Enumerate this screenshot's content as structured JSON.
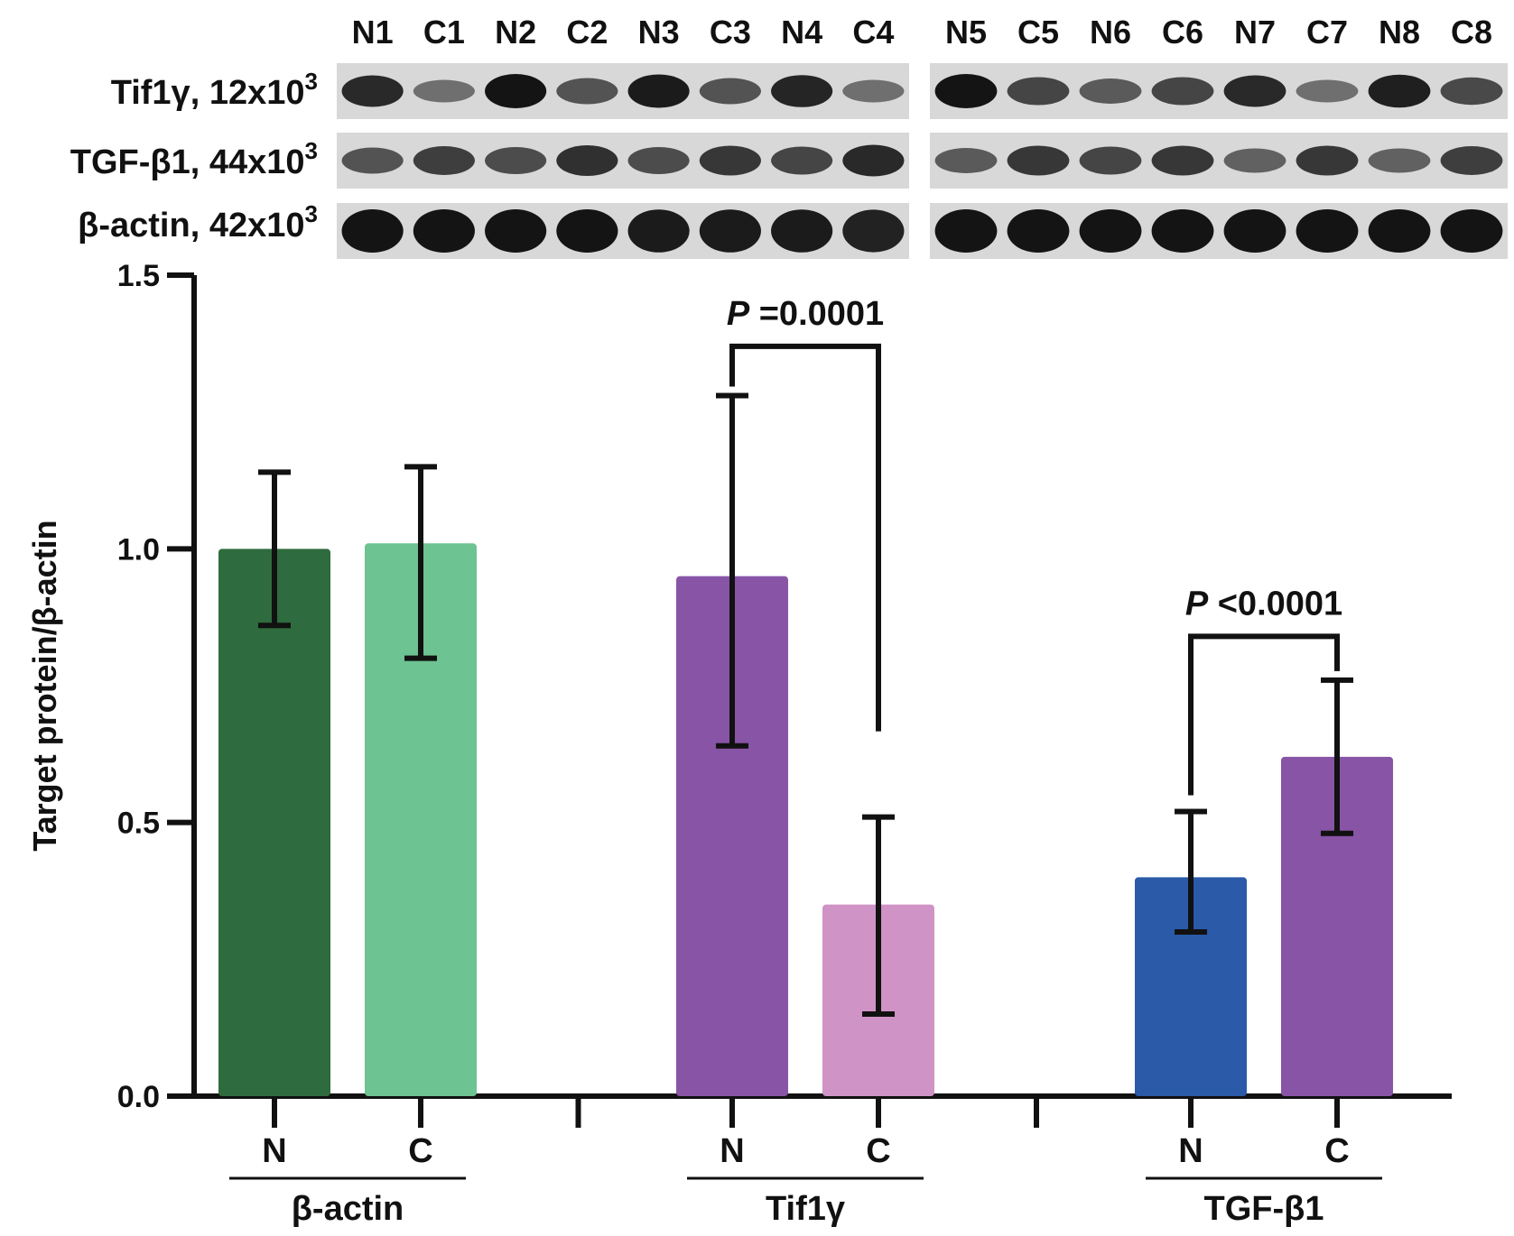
{
  "blot": {
    "lane_labels": [
      "N1",
      "C1",
      "N2",
      "C2",
      "N3",
      "C3",
      "N4",
      "C4",
      "N5",
      "C5",
      "N6",
      "C6",
      "N7",
      "C7",
      "N8",
      "C8"
    ],
    "rows": [
      {
        "name": "Tif1γ",
        "sep": ", ",
        "mass": "12",
        "times": "x",
        "power": "10",
        "exp": "3",
        "intensity": [
          0.85,
          0.35,
          1.0,
          0.55,
          0.95,
          0.55,
          0.88,
          0.35,
          1.0,
          0.65,
          0.5,
          0.65,
          0.85,
          0.35,
          0.92,
          0.62
        ]
      },
      {
        "name": "TGF-β1",
        "sep": ", ",
        "mass": "44",
        "times": "x",
        "power": "10",
        "exp": "3",
        "intensity": [
          0.55,
          0.7,
          0.6,
          0.8,
          0.6,
          0.75,
          0.65,
          0.85,
          0.5,
          0.75,
          0.65,
          0.75,
          0.45,
          0.75,
          0.45,
          0.7
        ]
      },
      {
        "name": "β-actin",
        "sep": ", ",
        "mass": "42",
        "times": "x",
        "power": "10",
        "exp": "3",
        "intensity": [
          1.0,
          1.0,
          1.0,
          1.0,
          0.95,
          0.95,
          0.95,
          0.9,
          1.0,
          1.0,
          1.0,
          1.0,
          1.0,
          1.0,
          1.0,
          1.0
        ]
      }
    ]
  },
  "chart_data": {
    "type": "bar",
    "ylabel": "Target protein/β-actin",
    "ylim": [
      0,
      1.5
    ],
    "yticks": [
      0.0,
      0.5,
      1.0,
      1.5
    ],
    "ytick_labels": [
      "0.0",
      "0.5",
      "1.0",
      "1.5"
    ],
    "groups": [
      {
        "name": "β-actin",
        "bars": [
          {
            "label": "N",
            "value": 1.0,
            "err_low": 0.86,
            "err_high": 1.14,
            "color": "#2e6b3e"
          },
          {
            "label": "C",
            "value": 1.01,
            "err_low": 0.8,
            "err_high": 1.15,
            "color": "#6dc391"
          }
        ]
      },
      {
        "name": "Tif1γ",
        "bars": [
          {
            "label": "N",
            "value": 0.95,
            "err_low": 0.64,
            "err_high": 1.28,
            "color": "#8854a6"
          },
          {
            "label": "C",
            "value": 0.35,
            "err_low": 0.15,
            "err_high": 0.51,
            "color": "#d093c5"
          }
        ],
        "significance": {
          "p_prefix": "P",
          "p_text": " =0.0001"
        }
      },
      {
        "name": "TGF-β1",
        "bars": [
          {
            "label": "N",
            "value": 0.4,
            "err_low": 0.3,
            "err_high": 0.52,
            "color": "#2a5aa8"
          },
          {
            "label": "C",
            "value": 0.62,
            "err_low": 0.48,
            "err_high": 0.76,
            "color": "#8854a6"
          }
        ],
        "significance": {
          "p_prefix": "P",
          "p_text": " <0.0001"
        }
      }
    ]
  }
}
